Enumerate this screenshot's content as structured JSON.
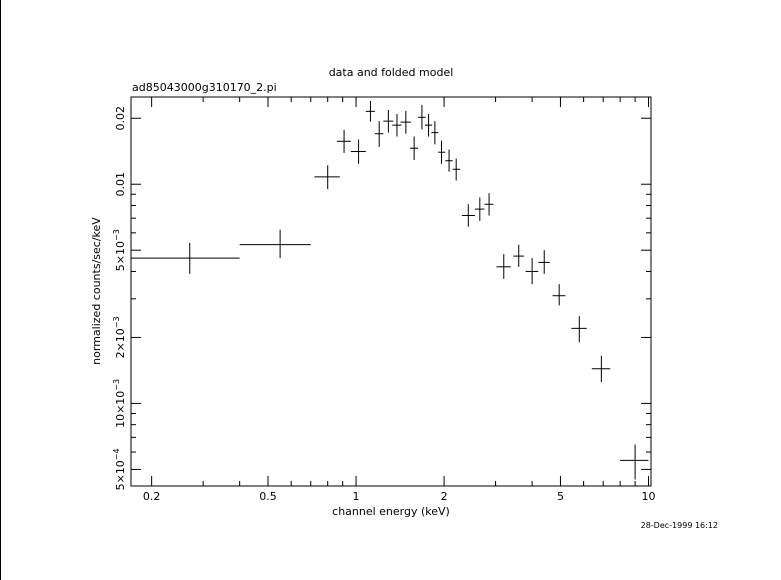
{
  "chart_data": {
    "type": "scatter",
    "title": "data and folded model",
    "subtitle": "ad85043000g310170_2.pi",
    "xlabel": "channel energy (keV)",
    "ylabel": "normalized counts/sec/keV",
    "timestamp": "28-Dec-1999 16:12",
    "x_scale": "log",
    "y_scale": "log",
    "xlim": [
      0.17,
      10.2
    ],
    "ylim": [
      0.00042,
      0.025
    ],
    "grid": false,
    "x_ticks": [
      {
        "value": 0.2,
        "label": "0.2"
      },
      {
        "value": 0.5,
        "label": "0.5"
      },
      {
        "value": 1,
        "label": "1"
      },
      {
        "value": 2,
        "label": "2"
      },
      {
        "value": 5,
        "label": "5"
      },
      {
        "value": 10,
        "label": "10"
      }
    ],
    "y_ticks": [
      {
        "value": 0.0005,
        "mant": "5",
        "exp": "−4"
      },
      {
        "value": 0.001,
        "mant": "10",
        "exp": "−3"
      },
      {
        "value": 0.002,
        "mant": "2",
        "exp": "−3"
      },
      {
        "value": 0.005,
        "mant": "5",
        "exp": "−3"
      },
      {
        "value": 0.01,
        "mant": "0.01",
        "exp": ""
      },
      {
        "value": 0.02,
        "mant": "0.02",
        "exp": ""
      }
    ],
    "points": [
      {
        "x": 0.27,
        "xlo": 0.17,
        "xhi": 0.4,
        "y": 0.0046,
        "ylo": 0.0039,
        "yhi": 0.0054
      },
      {
        "x": 0.55,
        "xlo": 0.4,
        "xhi": 0.7,
        "y": 0.0053,
        "ylo": 0.0046,
        "yhi": 0.0062
      },
      {
        "x": 0.8,
        "xlo": 0.72,
        "xhi": 0.88,
        "y": 0.0108,
        "ylo": 0.0095,
        "yhi": 0.0122
      },
      {
        "x": 0.91,
        "xlo": 0.86,
        "xhi": 0.96,
        "y": 0.0157,
        "ylo": 0.0139,
        "yhi": 0.0177
      },
      {
        "x": 1.02,
        "xlo": 0.96,
        "xhi": 1.08,
        "y": 0.0141,
        "ylo": 0.0124,
        "yhi": 0.016
      },
      {
        "x": 1.12,
        "xlo": 1.08,
        "xhi": 1.16,
        "y": 0.0215,
        "ylo": 0.0193,
        "yhi": 0.024
      },
      {
        "x": 1.2,
        "xlo": 1.16,
        "xhi": 1.24,
        "y": 0.017,
        "ylo": 0.0148,
        "yhi": 0.0194
      },
      {
        "x": 1.29,
        "xlo": 1.24,
        "xhi": 1.34,
        "y": 0.0194,
        "ylo": 0.0172,
        "yhi": 0.0218
      },
      {
        "x": 1.38,
        "xlo": 1.33,
        "xhi": 1.43,
        "y": 0.0186,
        "ylo": 0.0165,
        "yhi": 0.0209
      },
      {
        "x": 1.48,
        "xlo": 1.42,
        "xhi": 1.54,
        "y": 0.0192,
        "ylo": 0.017,
        "yhi": 0.0216
      },
      {
        "x": 1.58,
        "xlo": 1.53,
        "xhi": 1.63,
        "y": 0.0146,
        "ylo": 0.0129,
        "yhi": 0.0165
      },
      {
        "x": 1.68,
        "xlo": 1.63,
        "xhi": 1.73,
        "y": 0.0202,
        "ylo": 0.0178,
        "yhi": 0.023
      },
      {
        "x": 1.77,
        "xlo": 1.72,
        "xhi": 1.82,
        "y": 0.0186,
        "ylo": 0.0165,
        "yhi": 0.0209
      },
      {
        "x": 1.86,
        "xlo": 1.81,
        "xhi": 1.91,
        "y": 0.0172,
        "ylo": 0.0152,
        "yhi": 0.0194
      },
      {
        "x": 1.96,
        "xlo": 1.91,
        "xhi": 2.02,
        "y": 0.014,
        "ylo": 0.0124,
        "yhi": 0.0158
      },
      {
        "x": 2.08,
        "xlo": 2.02,
        "xhi": 2.14,
        "y": 0.0128,
        "ylo": 0.0114,
        "yhi": 0.0144
      },
      {
        "x": 2.2,
        "xlo": 2.14,
        "xhi": 2.27,
        "y": 0.0117,
        "ylo": 0.0104,
        "yhi": 0.0131
      },
      {
        "x": 2.42,
        "xlo": 2.3,
        "xhi": 2.55,
        "y": 0.0072,
        "ylo": 0.0064,
        "yhi": 0.0081
      },
      {
        "x": 2.65,
        "xlo": 2.55,
        "xhi": 2.75,
        "y": 0.0077,
        "ylo": 0.0068,
        "yhi": 0.0087
      },
      {
        "x": 2.85,
        "xlo": 2.75,
        "xhi": 2.95,
        "y": 0.0081,
        "ylo": 0.0072,
        "yhi": 0.0091
      },
      {
        "x": 3.2,
        "xlo": 3.02,
        "xhi": 3.38,
        "y": 0.0042,
        "ylo": 0.0037,
        "yhi": 0.0048
      },
      {
        "x": 3.6,
        "xlo": 3.45,
        "xhi": 3.75,
        "y": 0.0047,
        "ylo": 0.0042,
        "yhi": 0.0053
      },
      {
        "x": 4.0,
        "xlo": 3.8,
        "xhi": 4.2,
        "y": 0.004,
        "ylo": 0.0035,
        "yhi": 0.0046
      },
      {
        "x": 4.4,
        "xlo": 4.2,
        "xhi": 4.6,
        "y": 0.0044,
        "ylo": 0.0039,
        "yhi": 0.005
      },
      {
        "x": 4.95,
        "xlo": 4.7,
        "xhi": 5.2,
        "y": 0.0031,
        "ylo": 0.0028,
        "yhi": 0.0035
      },
      {
        "x": 5.8,
        "xlo": 5.45,
        "xhi": 6.15,
        "y": 0.0022,
        "ylo": 0.0019,
        "yhi": 0.0025
      },
      {
        "x": 6.9,
        "xlo": 6.4,
        "xhi": 7.4,
        "y": 0.00144,
        "ylo": 0.00125,
        "yhi": 0.00165
      },
      {
        "x": 9.0,
        "xlo": 8.0,
        "xhi": 10.0,
        "y": 0.00055,
        "ylo": 0.00045,
        "yhi": 0.00065
      }
    ]
  }
}
